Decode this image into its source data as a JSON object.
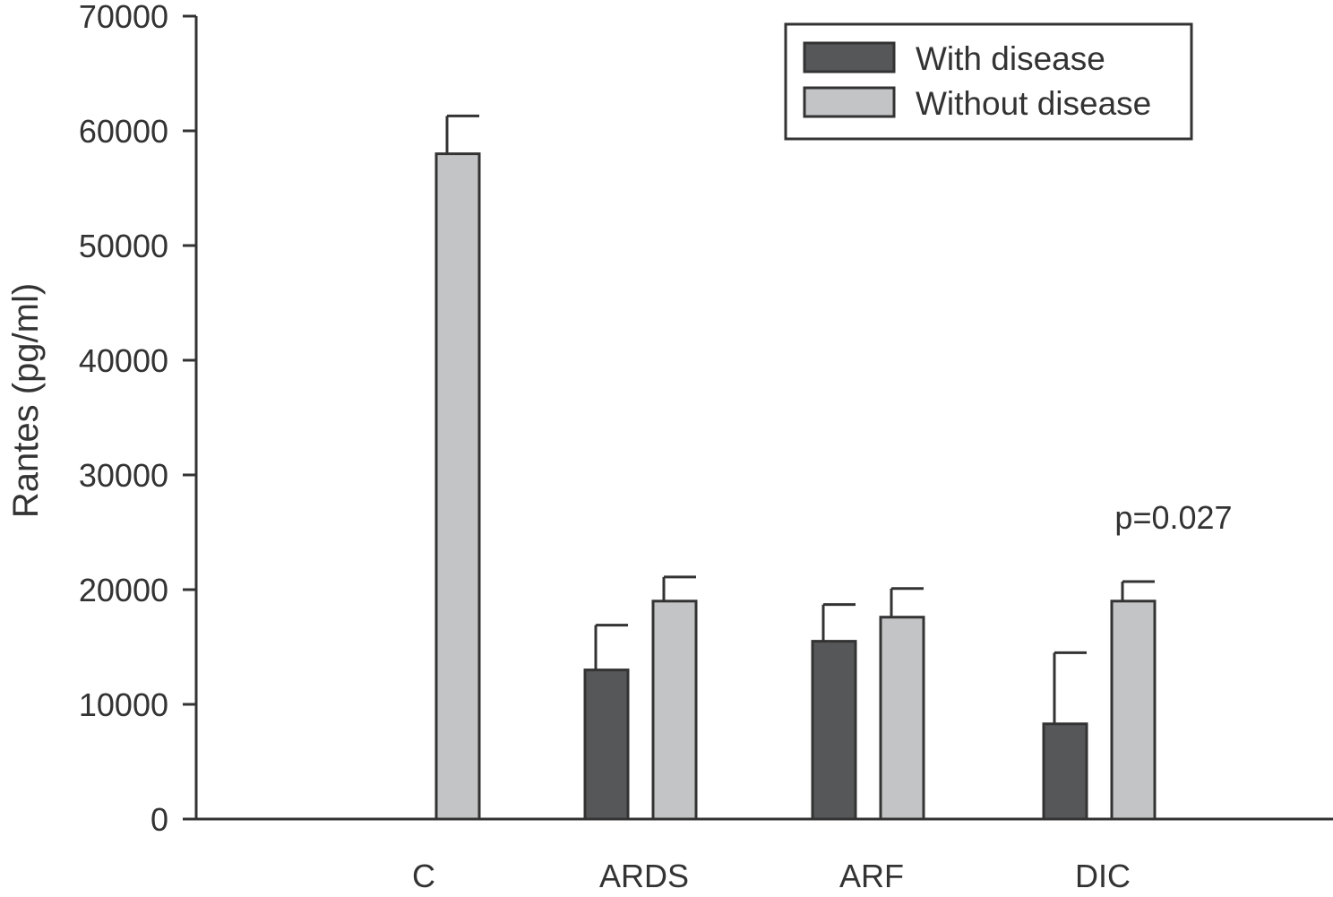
{
  "chart_data": {
    "type": "bar",
    "ylabel": "Rantes (pg/ml)",
    "xlabel": "",
    "ylim": [
      0,
      70000
    ],
    "yticks": [
      0,
      10000,
      20000,
      30000,
      40000,
      50000,
      60000,
      70000
    ],
    "categories": [
      "C",
      "ARDS",
      "ARF",
      "DIC"
    ],
    "series": [
      {
        "name": "With disease",
        "color": "#555759",
        "values": [
          null,
          13000,
          15500,
          8300
        ],
        "errors": [
          null,
          3900,
          3200,
          6200
        ]
      },
      {
        "name": "Without disease",
        "color": "#c3c4c6",
        "values": [
          58000,
          19000,
          17600,
          19000
        ],
        "errors": [
          3300,
          2100,
          2500,
          1700
        ]
      }
    ],
    "legend_position": "top-right",
    "annotations": [
      {
        "text": "p=0.027",
        "category": "DIC"
      }
    ],
    "grid": false
  }
}
